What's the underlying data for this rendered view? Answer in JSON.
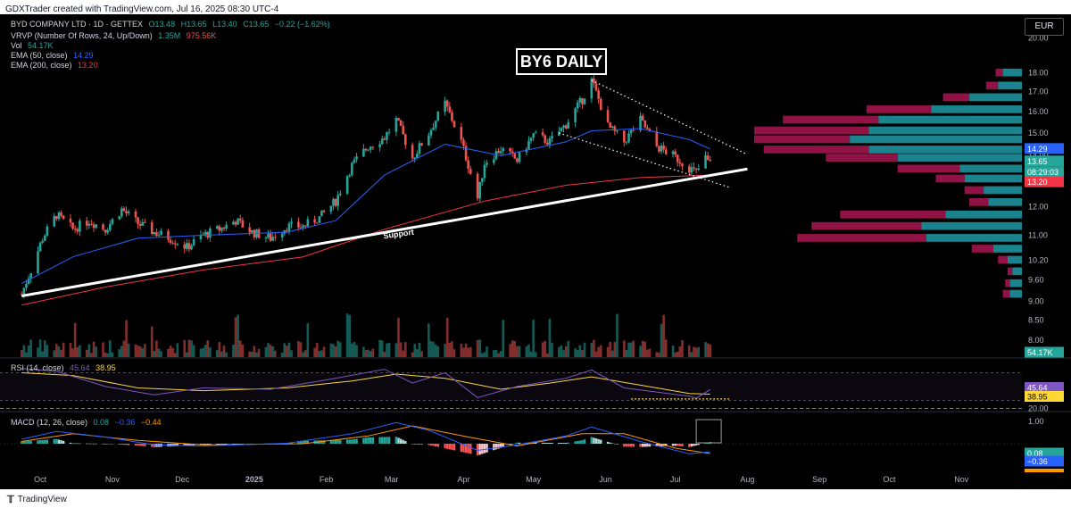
{
  "header": {
    "attribution": "GDXTrader created with TradingView.com, Jul 16, 2025 08:30 UTC-4"
  },
  "legend": {
    "symbol": "BYD COMPANY LTD · 1D · GETTEX",
    "ohlc_o": "O13.48",
    "ohlc_h": "H13.65",
    "ohlc_l": "L13.40",
    "ohlc_c": "C13.65",
    "change": "−0.22 (−1.62%)",
    "vrvp_label": "VRVP (Number Of Rows, 24, Up/Down)",
    "vrvp_up": "1.35M",
    "vrvp_down": "975.56K",
    "vol_label": "Vol",
    "vol_value": "54.17K",
    "ema50_label": "EMA (50, close)",
    "ema50_value": "14.29",
    "ema200_label": "EMA (200, close)",
    "ema200_value": "13.20",
    "rsi_label": "RSI (14, close)",
    "rsi_value": "45.64",
    "rsi_ma_value": "38.95",
    "macd_label": "MACD (12, 26, close)",
    "macd_hist": "0.08",
    "macd_line": "−0.36",
    "macd_signal": "−0.44"
  },
  "toolbar": {
    "currency": "EUR"
  },
  "annotations": {
    "title": "BY6 DAILY",
    "support": "Support"
  },
  "footer": {
    "brand": "TradingView"
  },
  "colors": {
    "background": "#000000",
    "up": "#26a69a",
    "down": "#ef5350",
    "ema50": "#2962ff",
    "ema200": "#f23645",
    "rsi": "#7e57c2",
    "rsi_ma": "#fdd835",
    "vrvp_up": "#1e9aa6",
    "vrvp_down": "#c2185b"
  },
  "chart_data": [
    {
      "type": "candlestick",
      "title": "BY6 DAILY",
      "x_tick_labels": [
        "Oct",
        "Nov",
        "Dec",
        "2025",
        "Feb",
        "Mar",
        "Apr",
        "May",
        "Jun",
        "Jul",
        "Aug",
        "Sep",
        "Oct",
        "Nov"
      ],
      "y_tick_labels": [
        "20.00",
        "18.00",
        "17.00",
        "16.00",
        "15.00",
        "14.00",
        "13.00",
        "12.00",
        "11.00",
        "10.20",
        "9.60",
        "9.00",
        "8.50",
        "8.00"
      ],
      "y_scale": "log",
      "ylim": [
        7.6,
        21.5
      ],
      "price_path": [
        [
          "Sep 23",
          9.2
        ],
        [
          "Sep 27",
          9.9
        ],
        [
          "Oct 2",
          10.9
        ],
        [
          "Oct 8",
          11.7
        ],
        [
          "Oct 15",
          11.2
        ],
        [
          "Oct 22",
          11.5
        ],
        [
          "Oct 29",
          11.2
        ],
        [
          "Nov 5",
          11.9
        ],
        [
          "Nov 12",
          11.4
        ],
        [
          "Nov 19",
          11.1
        ],
        [
          "Nov 26",
          10.9
        ],
        [
          "Dec 3",
          10.6
        ],
        [
          "Dec 10",
          11.0
        ],
        [
          "Dec 17",
          11.2
        ],
        [
          "Dec 24",
          11.5
        ],
        [
          "Dec 31",
          11.1
        ],
        [
          "Jan 8",
          10.9
        ],
        [
          "Jan 15",
          11.3
        ],
        [
          "Jan 22",
          11.3
        ],
        [
          "Jan 29",
          11.6
        ],
        [
          "Feb 5",
          12.2
        ],
        [
          "Feb 12",
          13.6
        ],
        [
          "Feb 19",
          14.4
        ],
        [
          "Feb 26",
          14.8
        ],
        [
          "Mar 3",
          15.6
        ],
        [
          "Mar 10",
          13.9
        ],
        [
          "Mar 17",
          15.0
        ],
        [
          "Mar 24",
          16.4
        ],
        [
          "Mar 31",
          14.6
        ],
        [
          "Apr 7",
          12.3
        ],
        [
          "Apr 10",
          13.7
        ],
        [
          "Apr 17",
          14.3
        ],
        [
          "Apr 24",
          13.8
        ],
        [
          "May 1",
          14.9
        ],
        [
          "May 8",
          14.6
        ],
        [
          "May 15",
          15.4
        ],
        [
          "May 22",
          16.6
        ],
        [
          "May 26",
          17.6
        ],
        [
          "Jun 2",
          15.3
        ],
        [
          "Jun 9",
          14.6
        ],
        [
          "Jun 16",
          15.6
        ],
        [
          "Jun 23",
          14.4
        ],
        [
          "Jun 30",
          14.0
        ],
        [
          "Jul 7",
          13.5
        ],
        [
          "Jul 10",
          13.3
        ],
        [
          "Jul 14",
          13.9
        ],
        [
          "Jul 16",
          13.65
        ]
      ],
      "ema50_path": [
        [
          "Sep 23",
          9.5
        ],
        [
          "Oct 15",
          10.3
        ],
        [
          "Nov 12",
          10.9
        ],
        [
          "Dec 10",
          11.0
        ],
        [
          "Jan 15",
          11.1
        ],
        [
          "Feb 5",
          11.5
        ],
        [
          "Feb 26",
          13.2
        ],
        [
          "Mar 24",
          14.5
        ],
        [
          "Apr 17",
          14.0
        ],
        [
          "May 15",
          14.6
        ],
        [
          "May 26",
          15.1
        ],
        [
          "Jun 16",
          15.2
        ],
        [
          "Jul 7",
          14.7
        ],
        [
          "Jul 16",
          14.29
        ]
      ],
      "ema200_path": [
        [
          "Sep 23",
          8.9
        ],
        [
          "Oct 29",
          9.4
        ],
        [
          "Dec 10",
          9.9
        ],
        [
          "Jan 22",
          10.3
        ],
        [
          "Feb 26",
          11.2
        ],
        [
          "Apr 10",
          12.2
        ],
        [
          "May 15",
          12.8
        ],
        [
          "Jun 16",
          13.1
        ],
        [
          "Jul 16",
          13.2
        ]
      ],
      "support_line": [
        [
          "Sep 23",
          9.15
        ],
        [
          "Aug 1",
          13.45
        ]
      ],
      "resistance_line": [
        [
          "May 26",
          17.6
        ],
        [
          "Jul 31",
          14.1
        ]
      ],
      "lower_wedge_line": [
        [
          "May 12",
          15.0
        ],
        [
          "Jul 25",
          12.7
        ]
      ],
      "price_labels": {
        "ema50": "14.29",
        "last": "13.65",
        "countdown": "08:29:03",
        "ema200": "13.20"
      },
      "volume_profile": {
        "rows": [
          {
            "price": 18.0,
            "up": 0.4,
            "down": 0.15
          },
          {
            "price": 17.3,
            "up": 0.5,
            "down": 0.25
          },
          {
            "price": 16.7,
            "up": 1.1,
            "down": 0.55
          },
          {
            "price": 16.1,
            "up": 1.9,
            "down": 1.35
          },
          {
            "price": 15.6,
            "up": 3.0,
            "down": 2.0
          },
          {
            "price": 15.1,
            "up": 3.2,
            "down": 2.4
          },
          {
            "price": 14.7,
            "up": 3.6,
            "down": 2.0
          },
          {
            "price": 14.25,
            "up": 3.2,
            "down": 2.2
          },
          {
            "price": 13.9,
            "up": 2.6,
            "down": 1.5
          },
          {
            "price": 13.45,
            "up": 1.3,
            "down": 1.3
          },
          {
            "price": 13.05,
            "up": 1.2,
            "down": 0.6
          },
          {
            "price": 12.6,
            "up": 0.8,
            "down": 0.4
          },
          {
            "price": 12.15,
            "up": 0.7,
            "down": 0.4
          },
          {
            "price": 11.7,
            "up": 1.6,
            "down": 2.2
          },
          {
            "price": 11.3,
            "up": 2.1,
            "down": 2.3
          },
          {
            "price": 10.9,
            "up": 2.0,
            "down": 2.7
          },
          {
            "price": 10.55,
            "up": 0.6,
            "down": 0.45
          },
          {
            "price": 10.2,
            "up": 0.3,
            "down": 0.2
          },
          {
            "price": 9.85,
            "up": 0.2,
            "down": 0.1
          },
          {
            "price": 9.5,
            "up": 0.25,
            "down": 0.1
          },
          {
            "price": 9.2,
            "up": 0.25,
            "down": 0.15
          }
        ]
      },
      "volume_last": "54.17K"
    },
    {
      "type": "line",
      "title": "RSI (14, close)",
      "y_tick_labels": [
        "20.00"
      ],
      "ylim": [
        15,
        90
      ],
      "bands": [
        70,
        30
      ],
      "series": [
        {
          "name": "RSI",
          "path": [
            [
              "Sep 23",
              76
            ],
            [
              "Oct 8",
              72
            ],
            [
              "Oct 29",
              50
            ],
            [
              "Nov 19",
              38
            ],
            [
              "Dec 10",
              48
            ],
            [
              "Jan 8",
              46
            ],
            [
              "Feb 5",
              62
            ],
            [
              "Feb 26",
              75
            ],
            [
              "Mar 10",
              55
            ],
            [
              "Mar 24",
              70
            ],
            [
              "Apr 7",
              34
            ],
            [
              "Apr 24",
              50
            ],
            [
              "May 15",
              62
            ],
            [
              "May 26",
              74
            ],
            [
              "Jun 9",
              48
            ],
            [
              "Jun 23",
              42
            ],
            [
              "Jul 7",
              36
            ],
            [
              "Jul 10",
              33
            ],
            [
              "Jul 16",
              45.64
            ]
          ]
        },
        {
          "name": "RSI-based MA",
          "path": [
            [
              "Sep 23",
              70
            ],
            [
              "Oct 15",
              66
            ],
            [
              "Nov 12",
              48
            ],
            [
              "Dec 10",
              44
            ],
            [
              "Jan 15",
              48
            ],
            [
              "Feb 12",
              58
            ],
            [
              "Mar 3",
              68
            ],
            [
              "Mar 24",
              62
            ],
            [
              "Apr 17",
              46
            ],
            [
              "May 8",
              55
            ],
            [
              "May 26",
              64
            ],
            [
              "Jun 16",
              52
            ],
            [
              "Jul 7",
              40
            ],
            [
              "Jul 16",
              38.95
            ]
          ]
        }
      ]
    },
    {
      "type": "bar",
      "title": "MACD (12, 26, close)",
      "y_tick_labels": [
        "1.00"
      ],
      "ylim": [
        -1.2,
        1.4
      ],
      "series": [
        {
          "name": "MACD",
          "path": [
            [
              "Sep 23",
              0.2
            ],
            [
              "Oct 8",
              0.55
            ],
            [
              "Oct 29",
              0.3
            ],
            [
              "Nov 19",
              -0.05
            ],
            [
              "Dec 10",
              -0.1
            ],
            [
              "Jan 15",
              0.02
            ],
            [
              "Feb 12",
              0.45
            ],
            [
              "Mar 3",
              0.95
            ],
            [
              "Mar 17",
              0.6
            ],
            [
              "Apr 7",
              -0.3
            ],
            [
              "Apr 24",
              -0.05
            ],
            [
              "May 15",
              0.35
            ],
            [
              "May 26",
              0.75
            ],
            [
              "Jun 16",
              0.1
            ],
            [
              "Jul 7",
              -0.45
            ],
            [
              "Jul 16",
              -0.36
            ]
          ]
        },
        {
          "name": "Signal",
          "path": [
            [
              "Sep 23",
              0.1
            ],
            [
              "Oct 15",
              0.45
            ],
            [
              "Nov 12",
              0.15
            ],
            [
              "Dec 10",
              -0.05
            ],
            [
              "Jan 22",
              0.0
            ],
            [
              "Feb 19",
              0.35
            ],
            [
              "Mar 10",
              0.8
            ],
            [
              "Apr 3",
              0.3
            ],
            [
              "Apr 24",
              -0.1
            ],
            [
              "May 22",
              0.45
            ],
            [
              "Jun 9",
              0.45
            ],
            [
              "Jul 1",
              -0.2
            ],
            [
              "Jul 16",
              -0.44
            ]
          ]
        }
      ]
    }
  ]
}
